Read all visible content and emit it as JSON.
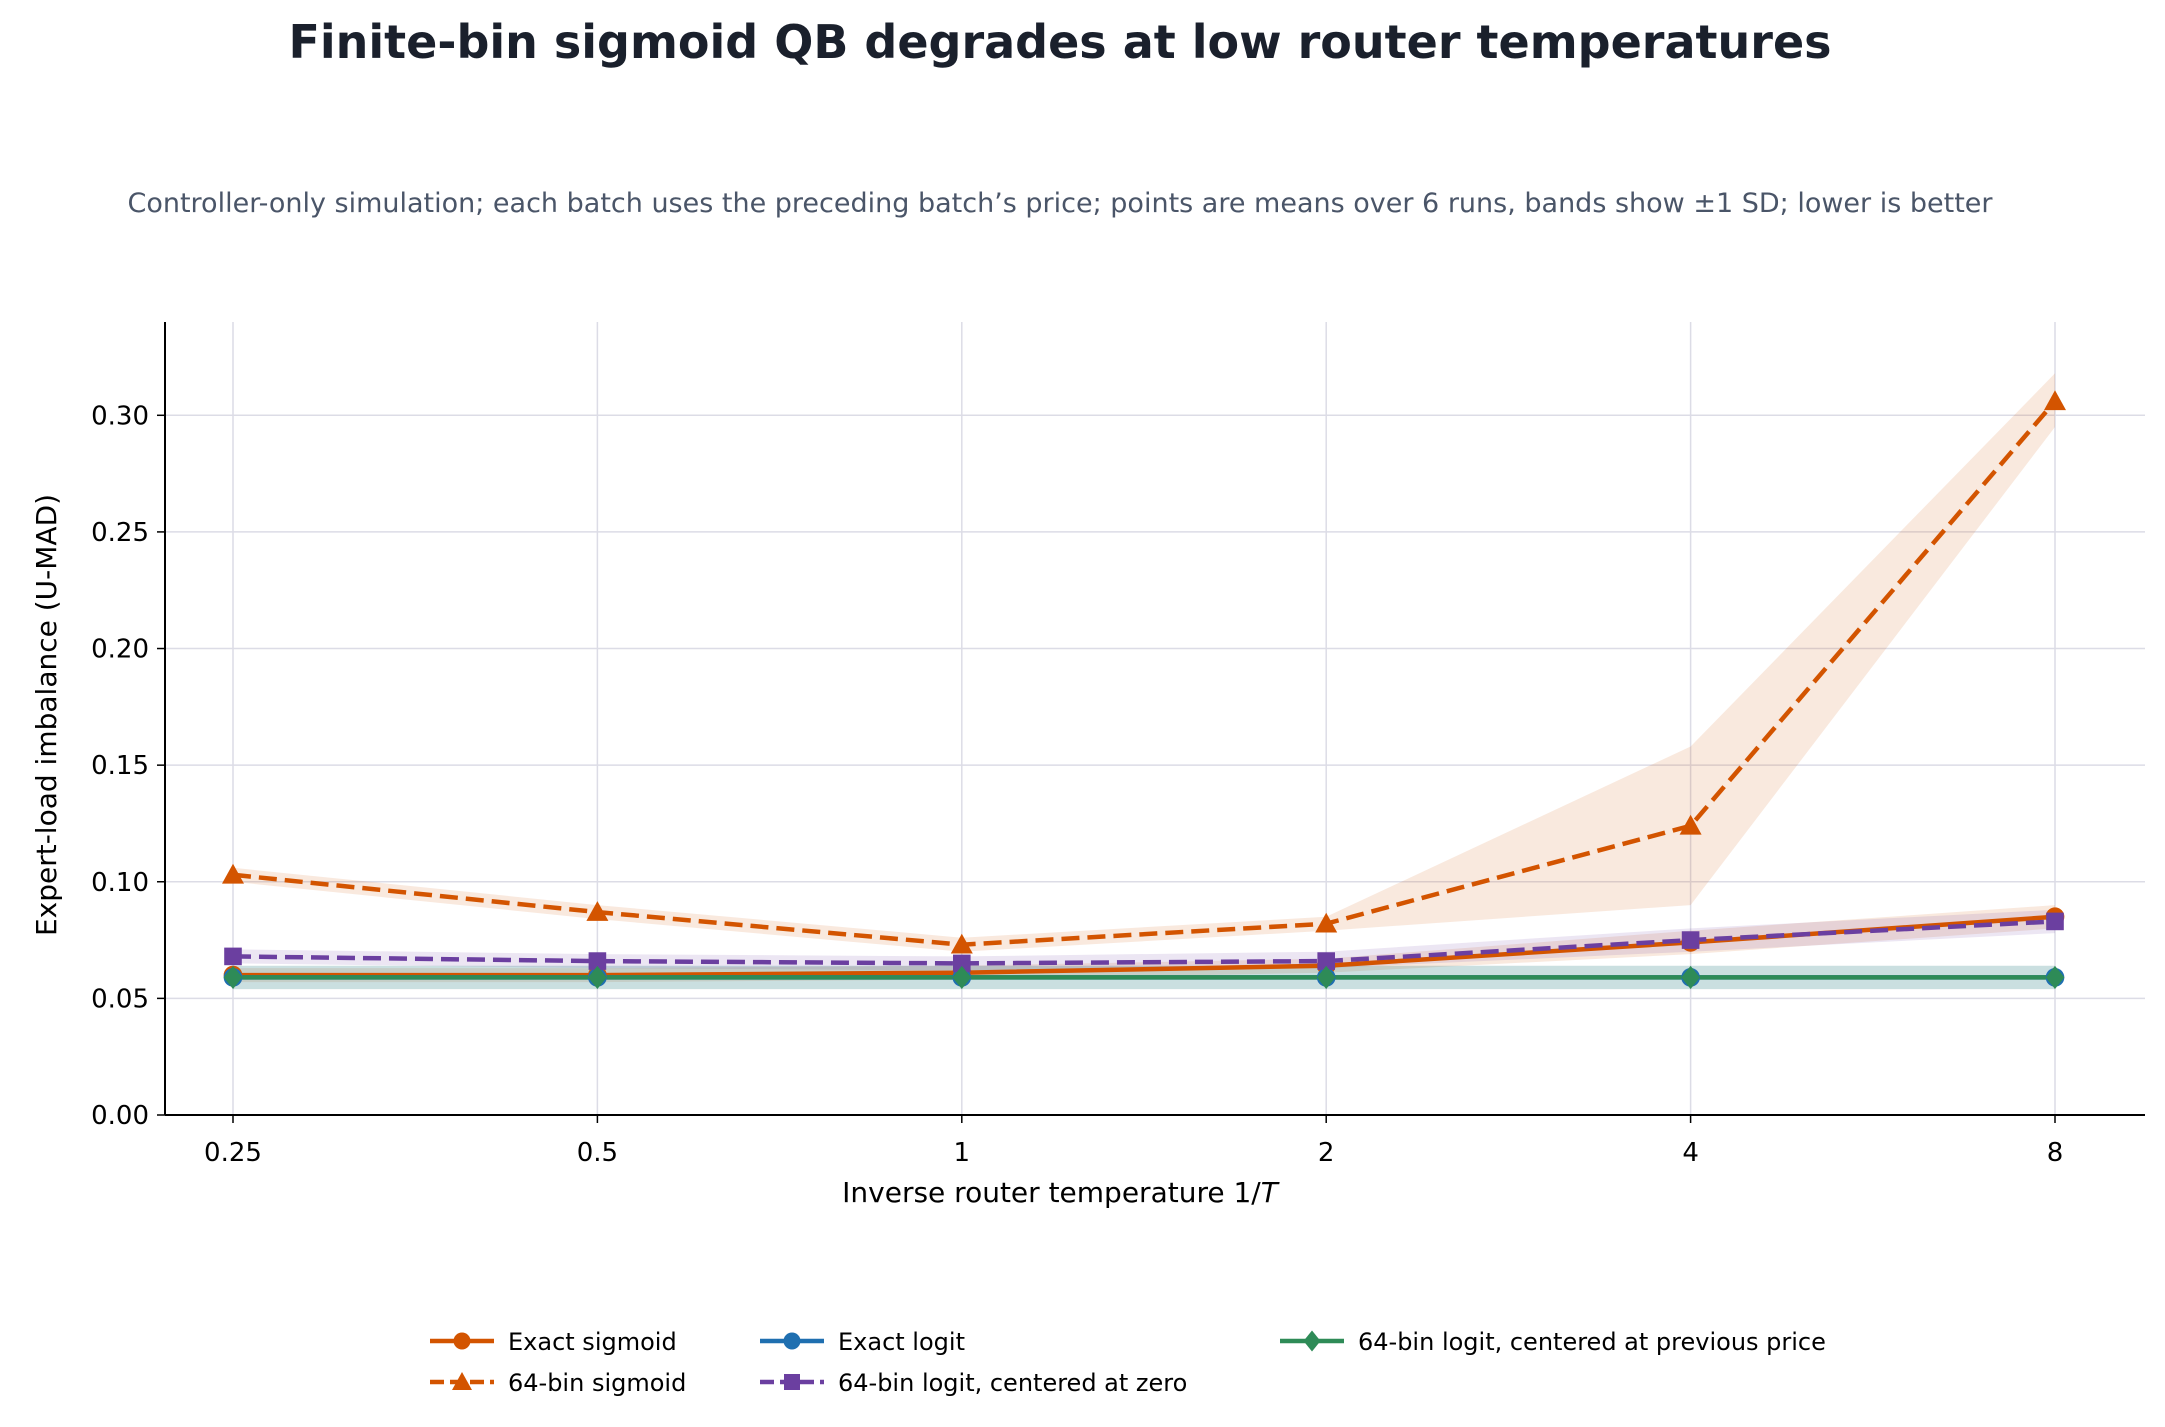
{
  "chart_data": {
    "type": "line",
    "title": "Finite-bin sigmoid QB degrades at low router temperatures",
    "subtitle": "Controller-only simulation; each batch uses the preceding batch’s price; points are means over 6 runs, bands show ±1 SD; lower is better",
    "xlabel": "Inverse router temperature 1/",
    "xlabel_var": "T",
    "ylabel": "Expert-load imbalance (U-MAD)",
    "x_scale": "log2",
    "x": [
      0.25,
      0.5,
      1,
      2,
      4,
      8
    ],
    "x_tick_labels": [
      "0.25",
      "0.5",
      "1",
      "2",
      "4",
      "8"
    ],
    "ylim": [
      0,
      0.34
    ],
    "y_ticks": [
      0.0,
      0.05,
      0.1,
      0.15,
      0.2,
      0.25,
      0.3
    ],
    "y_tick_labels": [
      "0.00",
      "0.05",
      "0.10",
      "0.15",
      "0.20",
      "0.25",
      "0.30"
    ],
    "grid": true,
    "legend_position": "bottom-center",
    "series": [
      {
        "name": "Exact sigmoid",
        "color": "#d35400",
        "marker": "circle",
        "dash": "solid",
        "values": [
          0.06,
          0.06,
          0.061,
          0.064,
          0.074,
          0.085
        ],
        "band_lower": [
          0.057,
          0.057,
          0.058,
          0.061,
          0.069,
          0.08
        ],
        "band_upper": [
          0.063,
          0.063,
          0.064,
          0.067,
          0.079,
          0.09
        ]
      },
      {
        "name": "64-bin sigmoid",
        "color": "#d35400",
        "marker": "triangle",
        "dash": "dashed",
        "values": [
          0.103,
          0.087,
          0.073,
          0.082,
          0.124,
          0.306
        ],
        "band_lower": [
          0.1,
          0.084,
          0.07,
          0.079,
          0.09,
          0.295
        ],
        "band_upper": [
          0.106,
          0.09,
          0.076,
          0.085,
          0.158,
          0.318
        ]
      },
      {
        "name": "Exact logit",
        "color": "#1f6fb0",
        "marker": "circle",
        "dash": "solid",
        "values": [
          0.059,
          0.059,
          0.059,
          0.059,
          0.059,
          0.059
        ],
        "band_lower": [
          0.054,
          0.054,
          0.054,
          0.054,
          0.054,
          0.054
        ],
        "band_upper": [
          0.064,
          0.064,
          0.064,
          0.064,
          0.064,
          0.064
        ]
      },
      {
        "name": "64-bin logit, centered at zero",
        "color": "#6b3fa0",
        "marker": "square",
        "dash": "dashed",
        "values": [
          0.068,
          0.066,
          0.065,
          0.066,
          0.075,
          0.083
        ],
        "band_lower": [
          0.065,
          0.063,
          0.062,
          0.063,
          0.07,
          0.078
        ],
        "band_upper": [
          0.071,
          0.069,
          0.068,
          0.07,
          0.08,
          0.088
        ]
      },
      {
        "name": "64-bin logit, centered at previous price",
        "color": "#2e8b57",
        "marker": "diamond",
        "dash": "solid",
        "values": [
          0.059,
          0.059,
          0.059,
          0.059,
          0.059,
          0.059
        ],
        "band_lower": [
          0.054,
          0.054,
          0.054,
          0.054,
          0.054,
          0.054
        ],
        "band_upper": [
          0.064,
          0.064,
          0.064,
          0.064,
          0.064,
          0.064
        ]
      }
    ]
  }
}
